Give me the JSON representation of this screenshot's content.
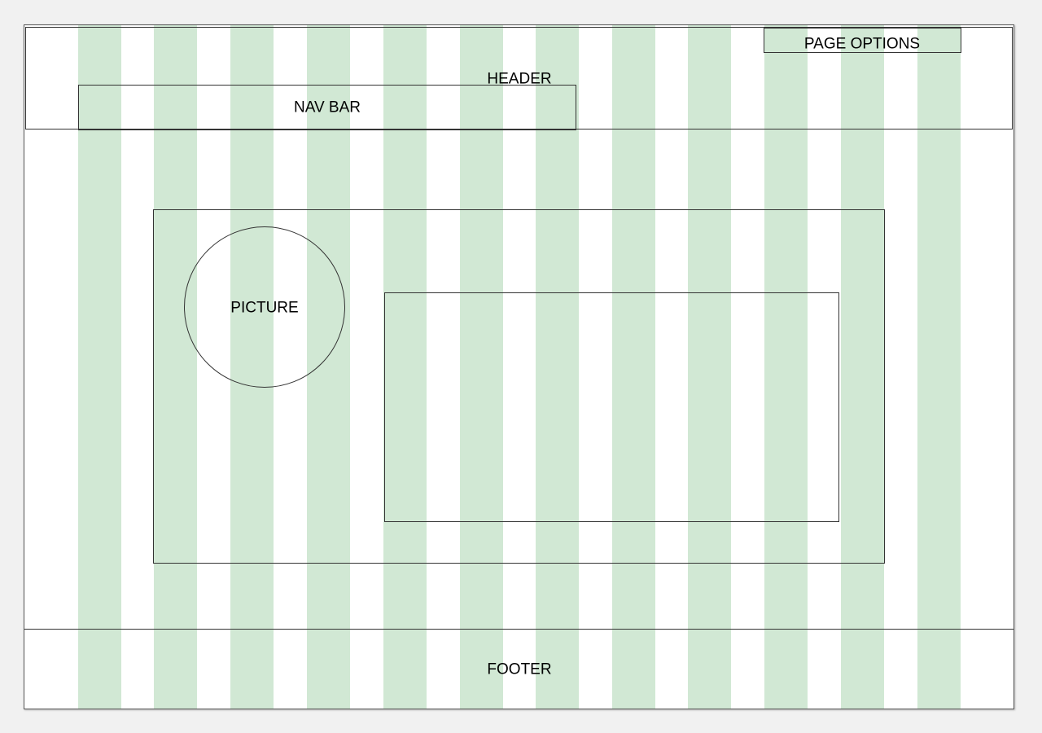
{
  "wireframe": {
    "header": {
      "label": "HEADER"
    },
    "page_options": {
      "label": "PAGE OPTIONS"
    },
    "nav_bar": {
      "label": "NAV BAR"
    },
    "picture": {
      "label": "PICTURE"
    },
    "content_box": {
      "label": ""
    },
    "footer": {
      "label": "FOOTER"
    }
  },
  "colors": {
    "grid_column": "#d1e8d4",
    "background": "#ffffff",
    "outline": "#333333"
  },
  "grid": {
    "column_count": 12
  }
}
